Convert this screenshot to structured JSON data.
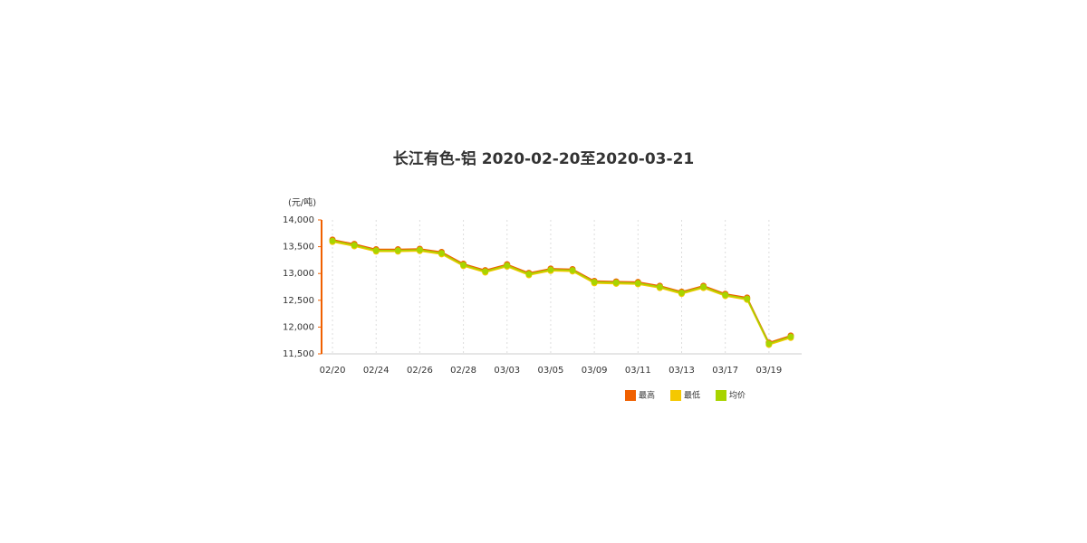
{
  "chart_data": {
    "type": "line",
    "title": "长江有色-铝 2020-02-20至2020-03-21",
    "y_label": "(元/吨)",
    "categories": [
      "02/20",
      null,
      "02/24",
      null,
      "02/26",
      null,
      "02/28",
      null,
      "03/03",
      null,
      "03/05",
      null,
      "03/09",
      null,
      "03/11",
      null,
      "03/13",
      null,
      "03/17",
      null,
      "03/19",
      null
    ],
    "series": [
      {
        "name": "最高",
        "color": "#f06000",
        "values": [
          13630,
          13550,
          13450,
          13450,
          13460,
          13400,
          13180,
          13060,
          13170,
          13010,
          13090,
          13080,
          12860,
          12850,
          12840,
          12770,
          12660,
          12770,
          12620,
          12550,
          11710,
          11840
        ]
      },
      {
        "name": "最低",
        "color": "#f5c800",
        "values": [
          13590,
          13510,
          13410,
          13410,
          13420,
          13360,
          13140,
          13020,
          13130,
          12970,
          13050,
          13040,
          12820,
          12810,
          12800,
          12730,
          12620,
          12730,
          12580,
          12510,
          11670,
          11800
        ]
      },
      {
        "name": "均价",
        "color": "#a8d400",
        "values": [
          13610,
          13530,
          13430,
          13430,
          13440,
          13380,
          13160,
          13040,
          13150,
          12990,
          13070,
          13060,
          12840,
          12830,
          12820,
          12750,
          12640,
          12750,
          12600,
          12530,
          11690,
          11820
        ]
      }
    ],
    "ylim": [
      11500,
      14000
    ],
    "yticks": [
      {
        "value": 11500,
        "label": "11,500"
      },
      {
        "value": 12000,
        "label": "12,000"
      },
      {
        "value": 12500,
        "label": "12,500"
      },
      {
        "value": 13000,
        "label": "13,000"
      },
      {
        "value": 13500,
        "label": "13,500"
      },
      {
        "value": 14000,
        "label": "14,000"
      }
    ],
    "grid": "x",
    "axis_color": "#f06000",
    "legend": "bottom-right"
  }
}
